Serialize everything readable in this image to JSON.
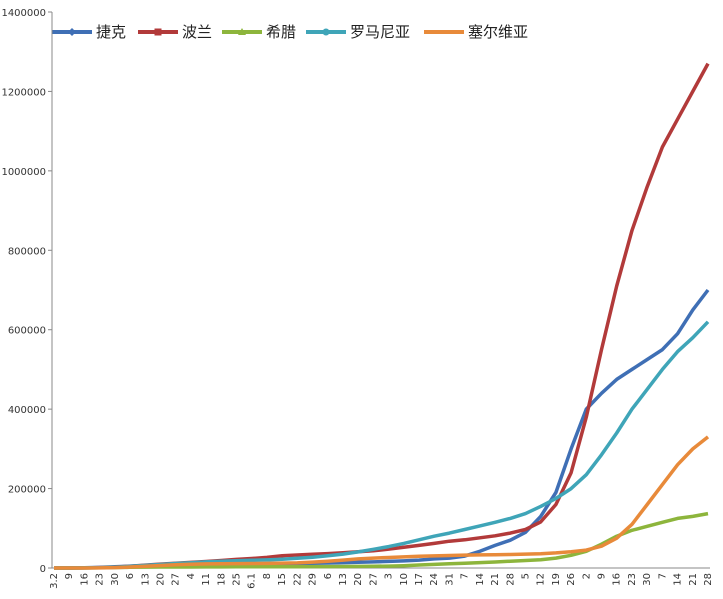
{
  "chart_data": {
    "type": "line",
    "categories": [
      "3.2",
      "9",
      "16",
      "23",
      "30",
      "6",
      "13",
      "20",
      "27",
      "4",
      "11",
      "18",
      "25",
      "6.1",
      "8",
      "15",
      "22",
      "29",
      "6",
      "13",
      "20",
      "27",
      "3",
      "10",
      "17",
      "24",
      "31",
      "7",
      "14",
      "21",
      "28",
      "5",
      "12",
      "19",
      "26",
      "2",
      "9",
      "16",
      "23",
      "30",
      "7",
      "14",
      "21",
      "28"
    ],
    "series": [
      {
        "name": "捷克",
        "color": "#3f6fb5",
        "marker": "diamond",
        "values": [
          0,
          30,
          400,
          1400,
          3000,
          4800,
          6000,
          7000,
          7500,
          7800,
          8100,
          8400,
          8900,
          9300,
          9800,
          10300,
          10800,
          11800,
          12600,
          13500,
          14500,
          15300,
          16500,
          18000,
          20000,
          23000,
          25000,
          30000,
          42000,
          57000,
          70000,
          90000,
          130000,
          190000,
          300000,
          400000,
          440000,
          475000,
          500000,
          525000,
          550000,
          590000,
          650000,
          700000
        ]
      },
      {
        "name": "波兰",
        "color": "#b23a3a",
        "marker": "square",
        "values": [
          0,
          100,
          200,
          900,
          2300,
          4400,
          7200,
          9900,
          12200,
          14000,
          16300,
          19000,
          21600,
          23800,
          26600,
          30700,
          32800,
          34400,
          36200,
          38200,
          40800,
          43400,
          47500,
          52000,
          57000,
          62000,
          67400,
          71000,
          76000,
          81000,
          88000,
          97000,
          116000,
          160000,
          240000,
          380000,
          550000,
          710000,
          850000,
          960000,
          1060000,
          1130000,
          1200000,
          1270000
        ]
      },
      {
        "name": "希腊",
        "color": "#8db53c",
        "marker": "triangle",
        "values": [
          0,
          7,
          330,
          700,
          1200,
          1700,
          2200,
          2400,
          2500,
          2600,
          2700,
          2800,
          2900,
          2900,
          3000,
          3100,
          3200,
          3400,
          3600,
          3800,
          4000,
          4300,
          4900,
          5900,
          7500,
          9100,
          10500,
          12000,
          13500,
          15000,
          17000,
          19000,
          21000,
          25000,
          32000,
          42000,
          60000,
          80000,
          95000,
          105000,
          115000,
          125000,
          130000,
          137000
        ]
      },
      {
        "name": "罗马尼亚",
        "color": "#3fa5b8",
        "marker": "circle",
        "values": [
          0,
          15,
          260,
          760,
          2100,
          4100,
          6600,
          8700,
          11300,
          13100,
          15300,
          17000,
          18300,
          19300,
          20300,
          22100,
          24500,
          27300,
          30800,
          35000,
          40500,
          47000,
          54000,
          62000,
          71000,
          80000,
          88000,
          97000,
          106000,
          115000,
          125000,
          137000,
          155000,
          175000,
          200000,
          235000,
          285000,
          340000,
          400000,
          450000,
          500000,
          545000,
          580000,
          620000
        ]
      },
      {
        "name": "塞尔维亚",
        "color": "#e88a3a",
        "marker": "none",
        "values": [
          0,
          0,
          60,
          300,
          1000,
          2400,
          4600,
          6300,
          8000,
          9400,
          10200,
          10700,
          11100,
          11400,
          11600,
          12300,
          12900,
          14800,
          17000,
          20000,
          23000,
          25000,
          26500,
          28000,
          29500,
          30500,
          31500,
          32500,
          33000,
          33500,
          34000,
          35000,
          36000,
          38000,
          41000,
          45000,
          55000,
          75000,
          110000,
          160000,
          210000,
          260000,
          300000,
          330000
        ]
      }
    ],
    "ylim": [
      0,
      1400000
    ],
    "yticks": [
      0,
      200000,
      400000,
      600000,
      800000,
      1000000,
      1200000,
      1400000
    ]
  }
}
